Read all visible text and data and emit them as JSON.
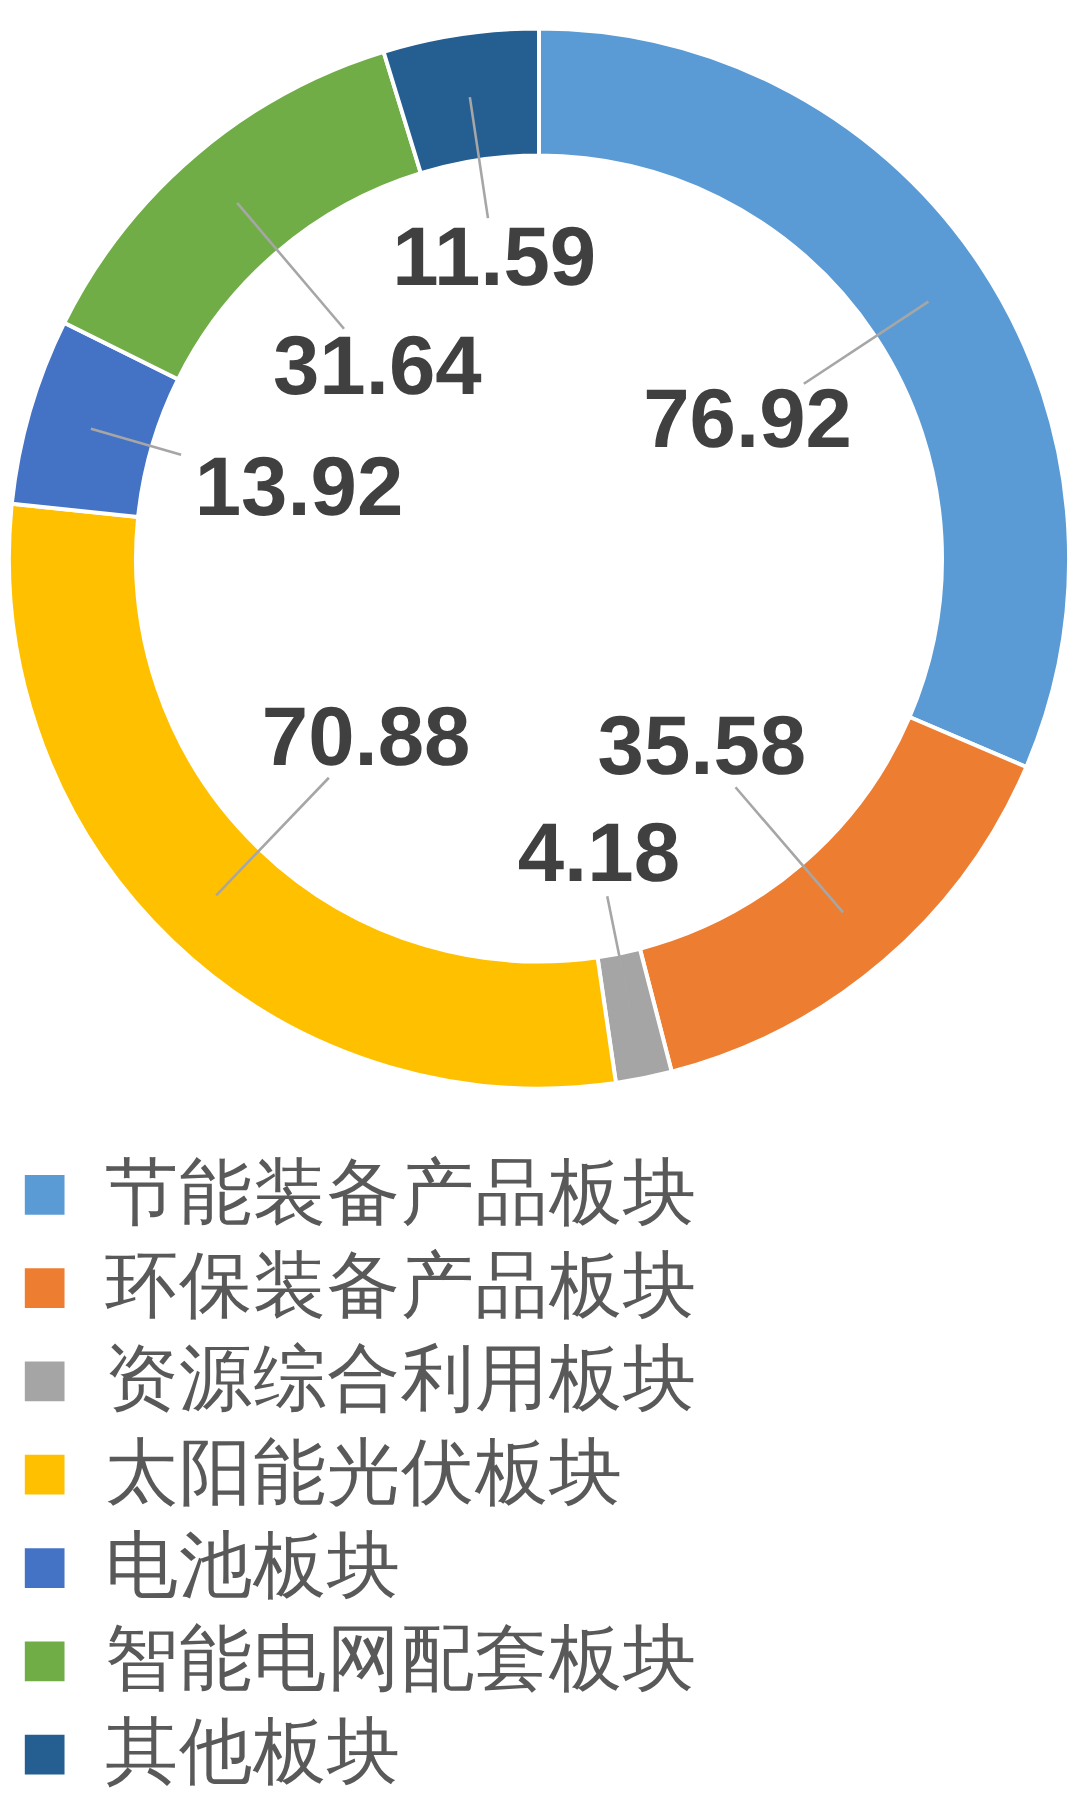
{
  "chart_data": {
    "type": "donut",
    "categories": [
      "节能装备产品板块",
      "环保装备产品板块",
      "资源综合利用板块",
      "太阳能光伏板块",
      "电池板块",
      "智能电网配套板块",
      "其他板块"
    ],
    "values": [
      76.92,
      35.58,
      4.18,
      70.88,
      13.92,
      31.64,
      11.59
    ],
    "colors": [
      "#5b9bd5",
      "#ed7d31",
      "#a5a5a5",
      "#ffc000",
      "#4472c4",
      "#70ad47",
      "#255e91"
    ],
    "data_labels": true,
    "legend": "bottom"
  }
}
